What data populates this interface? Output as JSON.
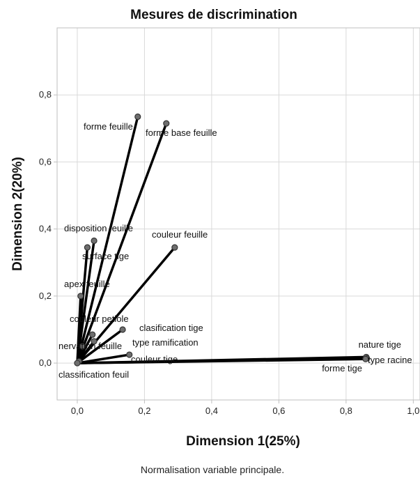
{
  "chart_data": {
    "type": "scatter",
    "subtype": "discrimination-vectors",
    "title": "Mesures de discrimination",
    "xlabel": "Dimension 1(25%)",
    "ylabel": "Dimension 2(20%)",
    "footnote": "Normalisation variable principale.",
    "xlim": [
      -0.06,
      1.02
    ],
    "ylim": [
      -0.11,
      1.0
    ],
    "xticks": [
      0.0,
      0.2,
      0.4,
      0.6,
      0.8,
      1.0
    ],
    "xtick_labels": [
      "0,0",
      "0,2",
      "0,4",
      "0,6",
      "0,8",
      "1,0"
    ],
    "yticks": [
      0.0,
      0.2,
      0.4,
      0.6,
      0.8
    ],
    "ytick_labels": [
      "0,0",
      "0,2",
      "0,4",
      "0,6",
      "0,8"
    ],
    "grid": true,
    "vectors_from_origin": true,
    "points": [
      {
        "label": "forme feuille",
        "x": 0.18,
        "y": 0.735
      },
      {
        "label": "forme base feuille",
        "x": 0.265,
        "y": 0.715
      },
      {
        "label": "couleur feuille",
        "x": 0.29,
        "y": 0.345
      },
      {
        "label": "disposition feuille",
        "x": 0.05,
        "y": 0.365
      },
      {
        "label": "surface tige",
        "x": 0.03,
        "y": 0.345
      },
      {
        "label": "apex feuille",
        "x": 0.01,
        "y": 0.2
      },
      {
        "label": "couleur petiole",
        "x": 0.045,
        "y": 0.085
      },
      {
        "label": "clasification tige",
        "x": 0.135,
        "y": 0.1
      },
      {
        "label": "type ramification",
        "x": 0.05,
        "y": 0.065
      },
      {
        "label": "nervation feuille",
        "x": 0.015,
        "y": 0.05
      },
      {
        "label": "couleur tige",
        "x": 0.155,
        "y": 0.025
      },
      {
        "label": "classification feuil",
        "x": 0.005,
        "y": 0.005
      },
      {
        "label": "nature tige",
        "x": 0.86,
        "y": 0.018
      },
      {
        "label": "type racine",
        "x": 0.862,
        "y": 0.014
      },
      {
        "label": "forme tige",
        "x": 0.858,
        "y": 0.012
      }
    ]
  }
}
